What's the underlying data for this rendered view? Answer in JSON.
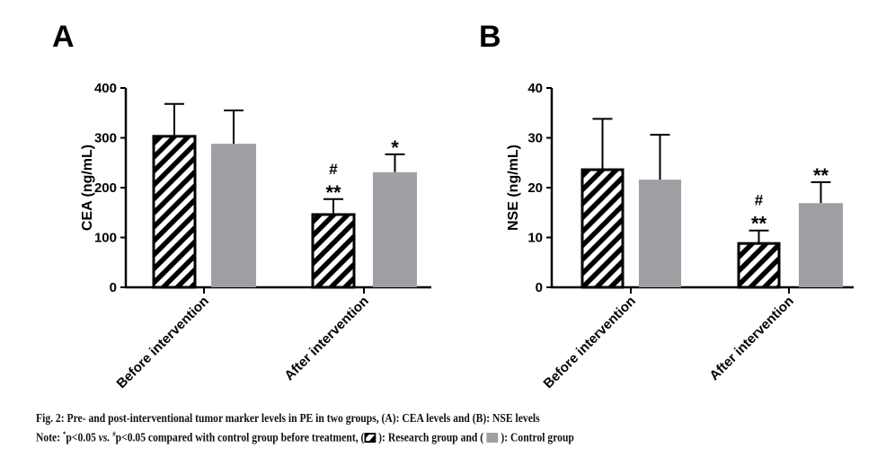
{
  "chart_data": [
    {
      "type": "bar",
      "panel": "A",
      "ylabel": "CEA (ng/mL)",
      "ylim": [
        0,
        400
      ],
      "yticks": [
        0,
        100,
        200,
        300,
        400
      ],
      "categories": [
        "Before intervention",
        "After intervention"
      ],
      "series": [
        {
          "name": "Research group",
          "values": [
            303,
            146
          ],
          "errors": [
            65,
            31
          ],
          "pattern": "hatch",
          "annotations": [
            "",
            "#\n**"
          ]
        },
        {
          "name": "Control group",
          "values": [
            288,
            231
          ],
          "errors": [
            67,
            36
          ],
          "color": "#a0a0a4",
          "annotations": [
            "",
            "*"
          ]
        }
      ]
    },
    {
      "type": "bar",
      "panel": "B",
      "ylabel": "NSE (ng/mL)",
      "ylim": [
        0,
        40
      ],
      "yticks": [
        0,
        10,
        20,
        30,
        40
      ],
      "categories": [
        "Before intervention",
        "After intervention"
      ],
      "series": [
        {
          "name": "Research group",
          "values": [
            23.6,
            8.8
          ],
          "errors": [
            10.2,
            2.6
          ],
          "pattern": "hatch",
          "annotations": [
            "",
            "#\n**"
          ]
        },
        {
          "name": "Control group",
          "values": [
            21.6,
            16.9
          ],
          "errors": [
            9.0,
            4.2
          ],
          "color": "#a0a0a4",
          "annotations": [
            "",
            "**"
          ]
        }
      ]
    }
  ],
  "caption": {
    "line1": "Fig. 2: Pre- and post-interventional tumor marker levels in PE in two groups, (A): CEA levels and (B): NSE levels",
    "note_prefix": "Note: ",
    "sup1": "*",
    "note_a": "p<0.05 ",
    "vs": "vs.",
    "sup2": "#",
    "note_b": "p<0.05 compared with control group before treatment, (",
    "legend_research": " ): Research group and (",
    "legend_control": " ): Control group"
  }
}
